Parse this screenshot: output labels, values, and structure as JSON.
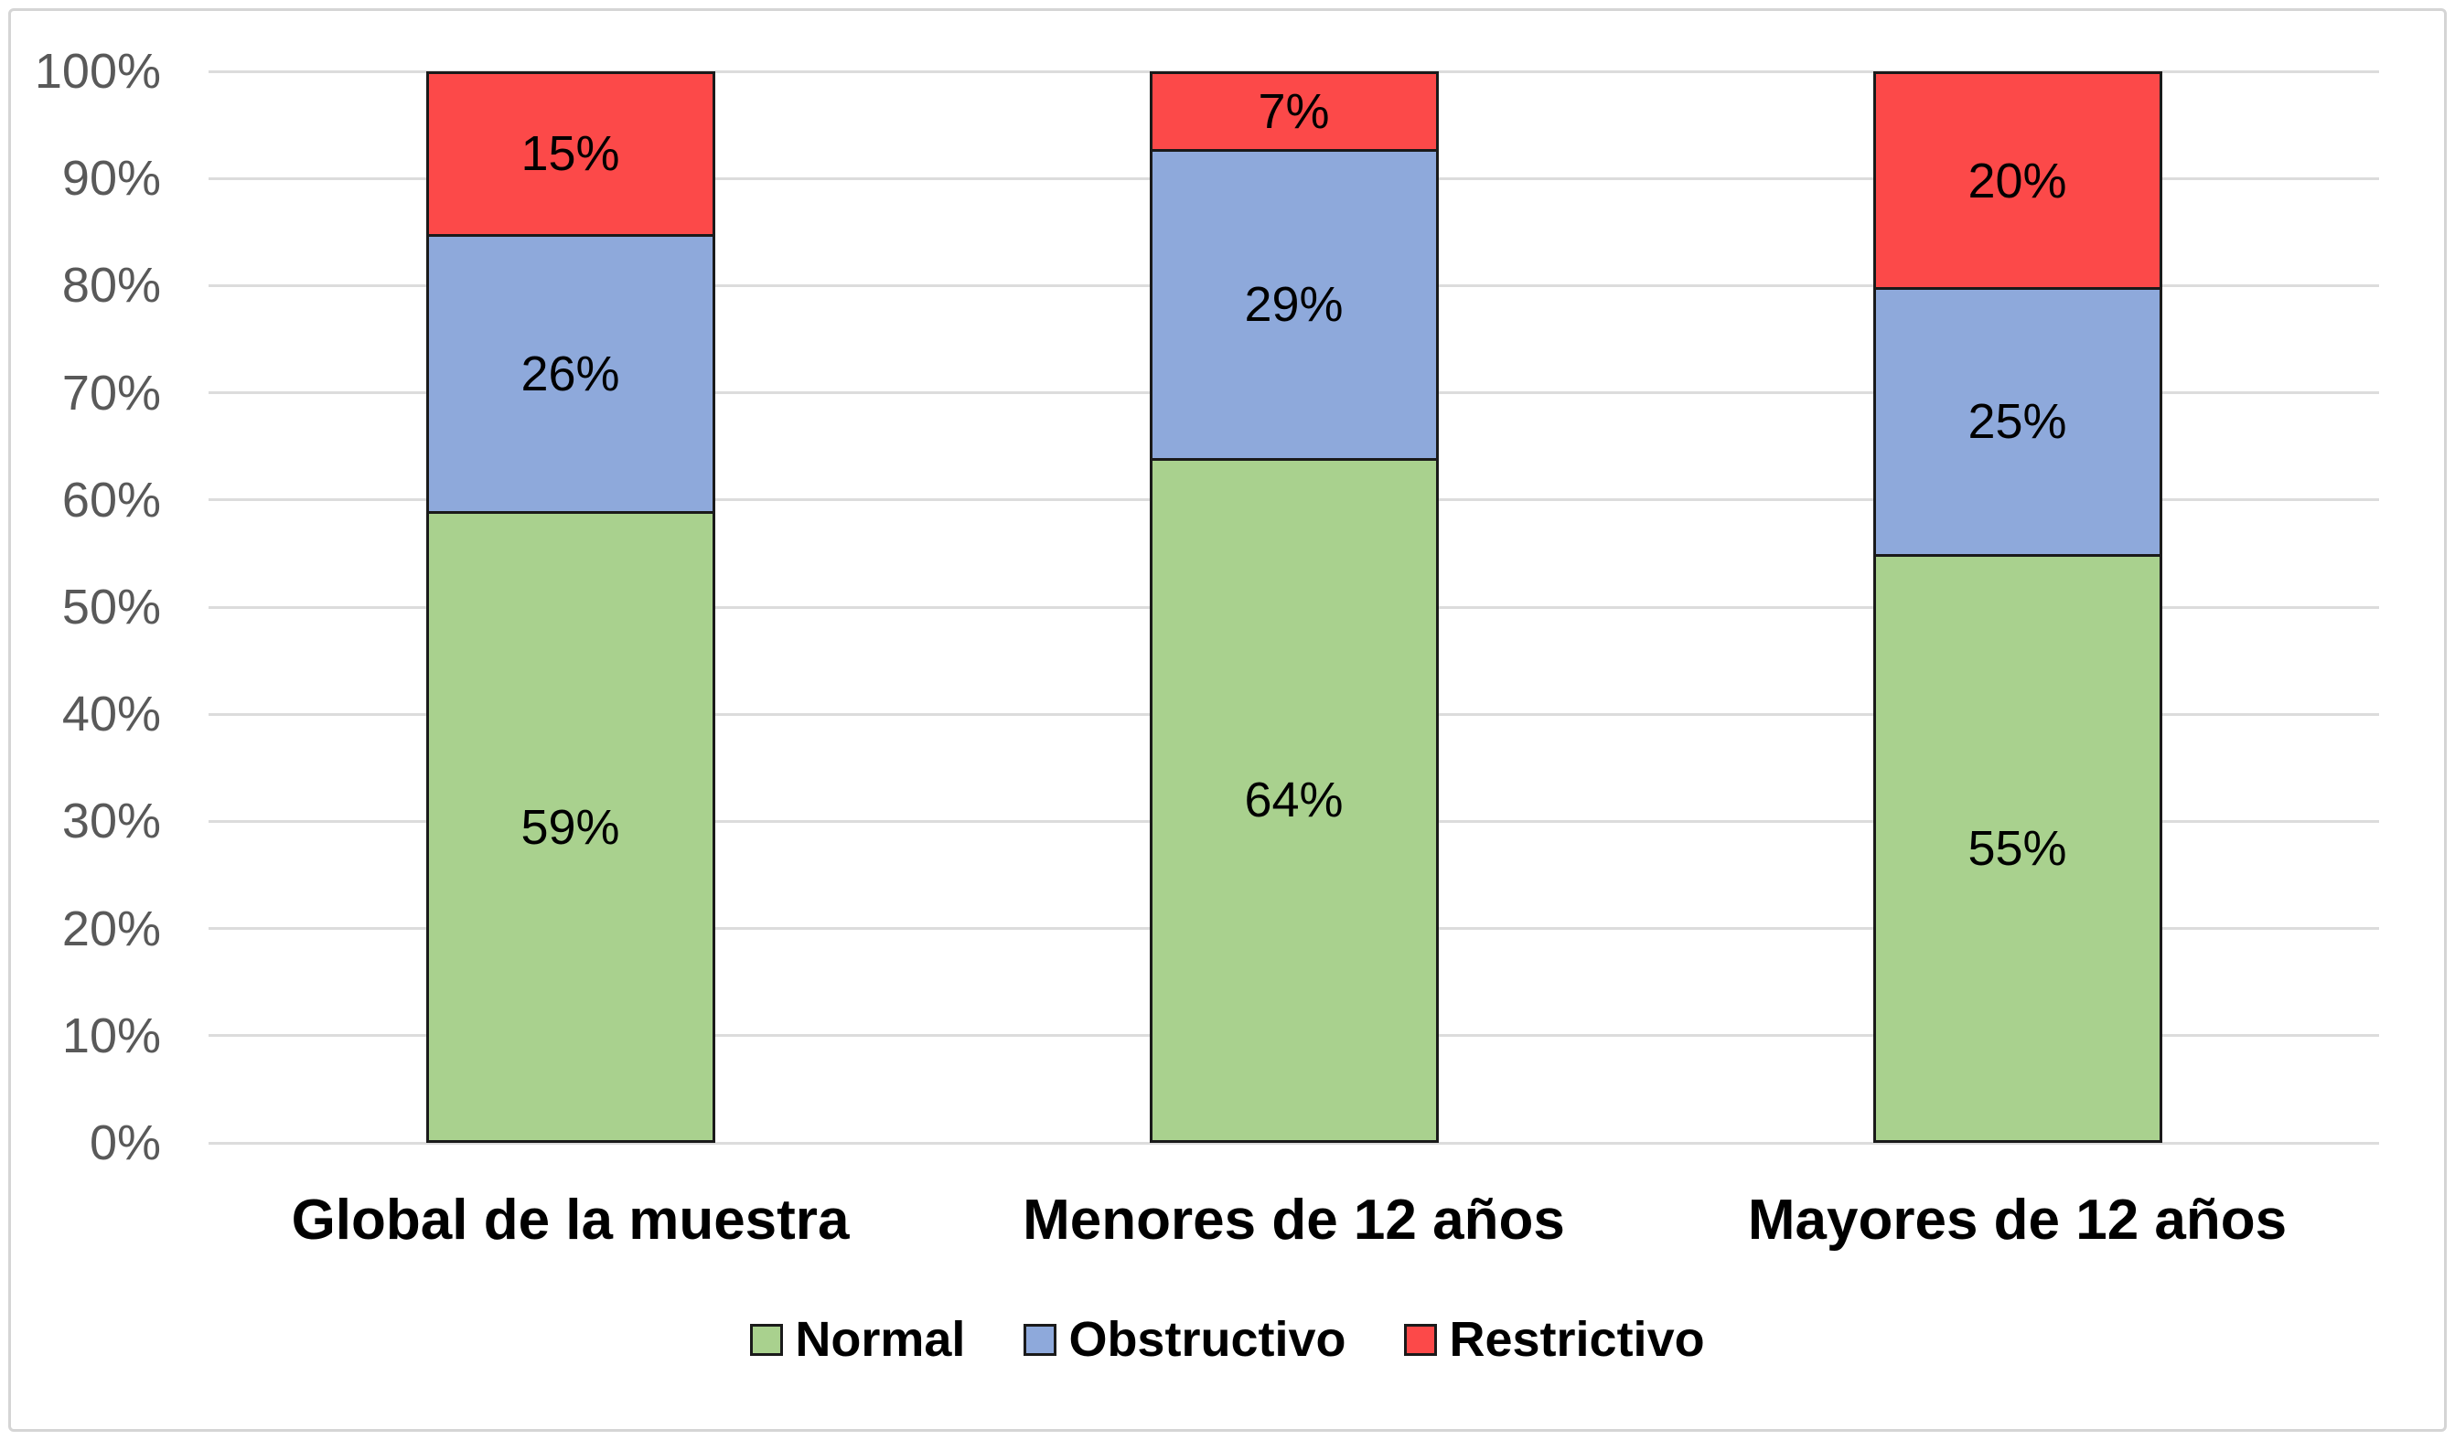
{
  "chart_data": {
    "type": "bar",
    "variant": "100-percent-stacked-column",
    "title": "",
    "xlabel": "",
    "ylabel": "",
    "categories": [
      "Global de la muestra",
      "Menores de 12 años",
      "Mayores de 12 años"
    ],
    "series": [
      {
        "name": "Normal",
        "color": "#A9D18E",
        "values": [
          59,
          64,
          55
        ],
        "labels": [
          "59%",
          "64%",
          "55%"
        ]
      },
      {
        "name": "Obstructivo",
        "color": "#8EA9DB",
        "values": [
          26,
          29,
          25
        ],
        "labels": [
          "26%",
          "29%",
          "25%"
        ]
      },
      {
        "name": "Restrictivo",
        "color": "#FC4949",
        "values": [
          15,
          7,
          20
        ],
        "labels": [
          "15%",
          "7%",
          "20%"
        ]
      }
    ],
    "stack_order_bottom_to_top": [
      "Normal",
      "Obstructivo",
      "Restrictivo"
    ],
    "y_axis": {
      "min": 0,
      "max": 100,
      "tick_step": 10,
      "tick_labels": [
        "0%",
        "10%",
        "20%",
        "30%",
        "40%",
        "50%",
        "60%",
        "70%",
        "80%",
        "90%",
        "100%"
      ],
      "grid": true
    },
    "legend": {
      "position": "bottom",
      "entries": [
        {
          "label": "Normal",
          "color": "#A9D18E"
        },
        {
          "label": "Obstructivo",
          "color": "#8EA9DB"
        },
        {
          "label": "Restrictivo",
          "color": "#FC4949"
        }
      ]
    }
  },
  "colors": {
    "tick_text": "#595959",
    "gridline": "#DCDCDC",
    "frame_border": "#D5D5D5",
    "bar_border": "#1A1A1A",
    "data_label": "#000000",
    "background": "#FFFFFF"
  }
}
